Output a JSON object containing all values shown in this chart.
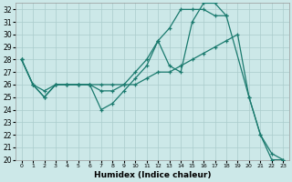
{
  "xlabel": "Humidex (Indice chaleur)",
  "xlim": [
    -0.5,
    23.5
  ],
  "ylim": [
    20,
    32.5
  ],
  "yticks": [
    20,
    21,
    22,
    23,
    24,
    25,
    26,
    27,
    28,
    29,
    30,
    31,
    32
  ],
  "xticks": [
    0,
    1,
    2,
    3,
    4,
    5,
    6,
    7,
    8,
    9,
    10,
    11,
    12,
    13,
    14,
    15,
    16,
    17,
    18,
    19,
    20,
    21,
    22,
    23
  ],
  "bg_color": "#cce8e8",
  "grid_color": "#aacccc",
  "line_color": "#1a7a6e",
  "series": [
    {
      "x": [
        0,
        1,
        2,
        3,
        4,
        5,
        6,
        7,
        8,
        9,
        10,
        11,
        12,
        13,
        14,
        15,
        16,
        17,
        18,
        20,
        21,
        22,
        23
      ],
      "y": [
        28,
        26,
        25,
        26,
        26,
        26,
        26,
        24,
        24.5,
        25.5,
        26.5,
        27.5,
        29.5,
        27.5,
        27,
        31,
        32.5,
        32.5,
        31.5,
        25,
        22,
        20.5,
        20
      ]
    },
    {
      "x": [
        0,
        1,
        2,
        3,
        4,
        5,
        6,
        7,
        8,
        9,
        10,
        11,
        12,
        13,
        14,
        15,
        16,
        17,
        18
      ],
      "y": [
        28,
        26,
        25.5,
        26,
        26,
        26,
        26,
        25.5,
        25.5,
        26,
        27,
        28,
        29.5,
        30.5,
        32,
        32,
        32,
        31.5,
        31.5
      ]
    },
    {
      "x": [
        0,
        1,
        2,
        3,
        4,
        5,
        6,
        7,
        8,
        9,
        10,
        11,
        12,
        13,
        14,
        15,
        16,
        17,
        18,
        19,
        20,
        21,
        22,
        23
      ],
      "y": [
        28,
        26,
        25,
        26,
        26,
        26,
        26,
        26,
        26,
        26,
        26,
        26.5,
        27,
        27,
        27.5,
        28,
        28.5,
        29,
        29.5,
        30,
        25,
        22,
        20,
        20
      ]
    }
  ]
}
